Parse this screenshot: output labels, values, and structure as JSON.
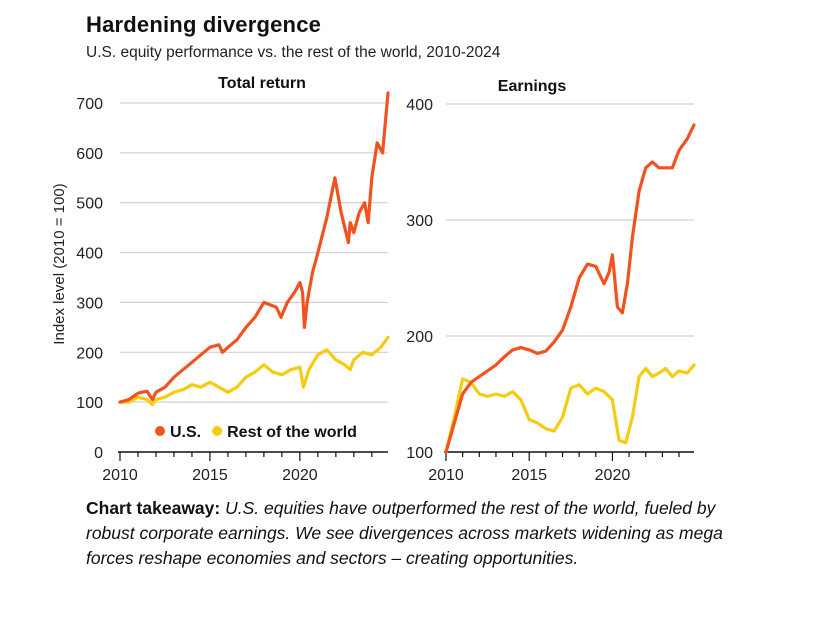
{
  "title": "Hardening divergence",
  "subtitle": "U.S. equity performance vs. the rest of the world, 2010-2024",
  "ylabel": "Index level (2010 = 100)",
  "takeaway": {
    "lead": "Chart takeaway:",
    "body": " U.S. equities have outperformed the rest of the world, fueled by robust corporate earnings. We see divergences across markets widening as mega forces reshape economies and sectors – creating opportunities."
  },
  "chart_data": [
    {
      "type": "line",
      "title": "Total return",
      "xlim": [
        2010,
        2024.9
      ],
      "xticks": [
        2010,
        2015,
        2020
      ],
      "ylim": [
        0,
        700
      ],
      "yticks": [
        0,
        100,
        200,
        300,
        400,
        500,
        600,
        700
      ],
      "grid": true,
      "legend_position": "bottom-right",
      "series": [
        {
          "name": "U.S.",
          "color": "#f0531f",
          "x": [
            2010,
            2010.5,
            2011,
            2011.5,
            2011.8,
            2012,
            2012.5,
            2013,
            2013.5,
            2014,
            2014.5,
            2015,
            2015.5,
            2015.7,
            2016,
            2016.5,
            2017,
            2017.5,
            2018,
            2018.7,
            2018.95,
            2019.3,
            2019.7,
            2020.0,
            2020.15,
            2020.25,
            2020.4,
            2020.7,
            2021,
            2021.5,
            2021.95,
            2022.3,
            2022.7,
            2022.8,
            2023.0,
            2023.3,
            2023.6,
            2023.8,
            2024.0,
            2024.3,
            2024.6,
            2024.9
          ],
          "values": [
            100,
            105,
            118,
            122,
            105,
            120,
            130,
            150,
            165,
            180,
            195,
            210,
            215,
            200,
            210,
            225,
            250,
            270,
            300,
            290,
            270,
            300,
            320,
            340,
            320,
            250,
            300,
            360,
            400,
            470,
            550,
            480,
            420,
            460,
            440,
            480,
            500,
            460,
            550,
            620,
            600,
            720
          ]
        },
        {
          "name": "Rest of the world",
          "color": "#f6cc12",
          "x": [
            2010,
            2010.5,
            2011,
            2011.5,
            2011.8,
            2012,
            2012.5,
            2013,
            2013.5,
            2014,
            2014.5,
            2015,
            2015.5,
            2016,
            2016.5,
            2017,
            2017.5,
            2018,
            2018.5,
            2019,
            2019.5,
            2020,
            2020.2,
            2020.5,
            2021,
            2021.5,
            2022,
            2022.5,
            2022.8,
            2023,
            2023.5,
            2024,
            2024.5,
            2024.9
          ],
          "values": [
            100,
            100,
            110,
            105,
            95,
            105,
            110,
            120,
            125,
            135,
            130,
            140,
            130,
            120,
            130,
            150,
            160,
            175,
            160,
            155,
            165,
            170,
            130,
            165,
            195,
            205,
            185,
            175,
            165,
            185,
            200,
            195,
            210,
            230
          ]
        }
      ]
    },
    {
      "type": "line",
      "title": "Earnings",
      "xlim": [
        2010,
        2024.9
      ],
      "xticks": [
        2010,
        2015,
        2020
      ],
      "ylim": [
        100,
        400
      ],
      "yticks": [
        100,
        200,
        300,
        400
      ],
      "grid": true,
      "series": [
        {
          "name": "U.S.",
          "color": "#f0531f",
          "x": [
            2010,
            2010.5,
            2011,
            2011.5,
            2012,
            2012.5,
            2013,
            2013.5,
            2014,
            2014.5,
            2015,
            2015.5,
            2016,
            2016.5,
            2017,
            2017.5,
            2018,
            2018.5,
            2019,
            2019.5,
            2019.8,
            2020.0,
            2020.3,
            2020.6,
            2020.9,
            2021.2,
            2021.6,
            2022.0,
            2022.4,
            2022.8,
            2023.2,
            2023.6,
            2024.0,
            2024.5,
            2024.9
          ],
          "values": [
            100,
            125,
            150,
            160,
            165,
            170,
            175,
            182,
            188,
            190,
            188,
            185,
            187,
            195,
            205,
            225,
            250,
            262,
            260,
            245,
            255,
            270,
            225,
            220,
            245,
            285,
            325,
            345,
            350,
            345,
            345,
            345,
            360,
            370,
            382
          ]
        },
        {
          "name": "Rest of the world",
          "color": "#f6cc12",
          "x": [
            2010,
            2010.5,
            2011,
            2011.5,
            2012,
            2012.5,
            2013,
            2013.5,
            2014,
            2014.5,
            2015,
            2015.5,
            2016,
            2016.5,
            2017,
            2017.5,
            2018,
            2018.5,
            2019,
            2019.5,
            2020.0,
            2020.4,
            2020.8,
            2021.2,
            2021.6,
            2022.0,
            2022.4,
            2022.8,
            2023.2,
            2023.6,
            2024.0,
            2024.5,
            2024.9
          ],
          "values": [
            100,
            130,
            163,
            160,
            150,
            148,
            150,
            148,
            152,
            145,
            128,
            125,
            120,
            118,
            130,
            155,
            158,
            150,
            155,
            152,
            145,
            110,
            108,
            130,
            165,
            172,
            165,
            168,
            172,
            165,
            170,
            168,
            175
          ]
        }
      ]
    }
  ]
}
